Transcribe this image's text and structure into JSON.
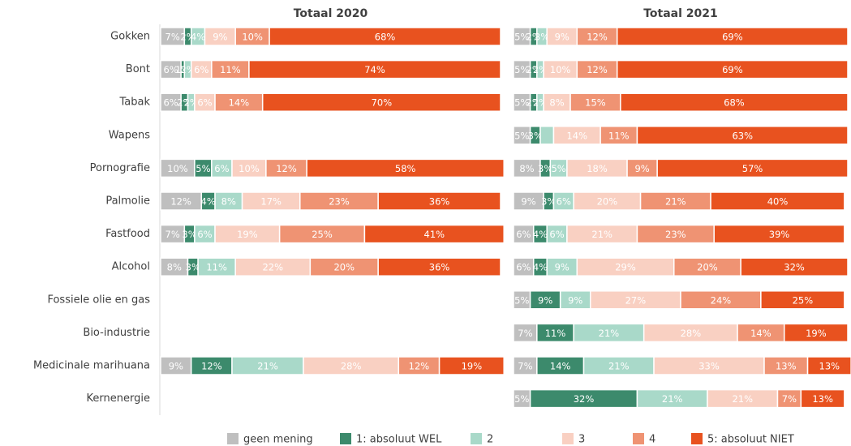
{
  "chart_data": {
    "type": "bar",
    "orientation": "horizontal",
    "stacked": true,
    "xlim": [
      0,
      100
    ],
    "legend": "bottom",
    "categories": [
      "Gokken",
      "Bont",
      "Tabak",
      "Wapens",
      "Pornografie",
      "Palmolie",
      "Fastfood",
      "Alcohol",
      "Fossiele olie en gas",
      "Bio-industrie",
      "Medicinale marihuana",
      "Kernenergie"
    ],
    "series": [
      {
        "name": "geen mening",
        "color": "#bfbfbf"
      },
      {
        "name": "1: absoluut WEL",
        "color": "#3c8a6c"
      },
      {
        "name": "2",
        "color": "#a9d9c9"
      },
      {
        "name": "3",
        "color": "#f9d0c2"
      },
      {
        "name": "4",
        "color": "#ef9373"
      },
      {
        "name": "5: absoluut NIET",
        "color": "#e8521f"
      }
    ],
    "panels": [
      {
        "title": "Totaal 2020",
        "values": [
          [
            7,
            6,
            6,
            null,
            10,
            12,
            7,
            8,
            null,
            null,
            9,
            null
          ],
          [
            2,
            1,
            2,
            null,
            5,
            4,
            3,
            3,
            null,
            null,
            12,
            null
          ],
          [
            4,
            2,
            2,
            null,
            6,
            8,
            6,
            11,
            null,
            null,
            21,
            null
          ],
          [
            9,
            6,
            6,
            null,
            10,
            17,
            19,
            22,
            null,
            null,
            28,
            null
          ],
          [
            10,
            11,
            14,
            null,
            12,
            23,
            25,
            20,
            null,
            null,
            12,
            null
          ],
          [
            68,
            74,
            70,
            null,
            58,
            36,
            41,
            36,
            null,
            null,
            19,
            null
          ]
        ],
        "value_labels": [
          [
            "7%",
            "6%",
            "6%",
            null,
            "10%",
            "12%",
            "7%",
            "8%",
            null,
            null,
            "9%",
            null
          ],
          [
            "2%",
            "1%",
            "2%",
            null,
            "5%",
            "4%",
            "3%",
            "3%",
            null,
            null,
            "12%",
            null
          ],
          [
            "4%",
            "2%",
            "2%",
            null,
            "6%",
            "8%",
            "6%",
            "11%",
            null,
            null,
            "21%",
            null
          ],
          [
            "9%",
            "6%",
            "6%",
            null,
            "10%",
            "17%",
            "19%",
            "22%",
            null,
            null,
            "28%",
            null
          ],
          [
            "10%",
            "11%",
            "14%",
            null,
            "12%",
            "23%",
            "25%",
            "20%",
            null,
            null,
            "12%",
            null
          ],
          [
            "68%",
            "74%",
            "70%",
            null,
            "58%",
            "36%",
            "41%",
            "36%",
            null,
            null,
            "19%",
            null
          ]
        ]
      },
      {
        "title": "Totaal 2021",
        "values": [
          [
            5,
            5,
            5,
            5,
            8,
            9,
            6,
            6,
            5,
            7,
            7,
            5
          ],
          [
            2,
            2,
            2,
            3,
            3,
            3,
            4,
            4,
            9,
            11,
            14,
            32
          ],
          [
            3,
            2,
            2,
            4,
            5,
            6,
            6,
            9,
            9,
            21,
            21,
            21
          ],
          [
            9,
            10,
            8,
            14,
            18,
            20,
            21,
            29,
            27,
            28,
            33,
            21
          ],
          [
            12,
            12,
            15,
            11,
            9,
            21,
            23,
            20,
            24,
            14,
            13,
            7
          ],
          [
            69,
            69,
            68,
            63,
            57,
            40,
            39,
            32,
            25,
            19,
            13,
            13
          ]
        ],
        "value_labels": [
          [
            "5%",
            "5%",
            "5%",
            "5%",
            "8%",
            "9%",
            "6%",
            "6%",
            "5%",
            "7%",
            "7%",
            "5%"
          ],
          [
            "2%",
            "2%",
            "2%",
            "3%",
            "3%",
            "3%",
            "4%",
            "4%",
            "9%",
            "11%",
            "14%",
            "32%"
          ],
          [
            "3%",
            "2%",
            "2%",
            null,
            "5%",
            "6%",
            "6%",
            "9%",
            "9%",
            "21%",
            "21%",
            "21%"
          ],
          [
            "9%",
            "10%",
            "8%",
            "14%",
            "18%",
            "20%",
            "21%",
            "29%",
            "27%",
            "28%",
            "33%",
            "21%"
          ],
          [
            "12%",
            "12%",
            "15%",
            "11%",
            "9%",
            "21%",
            "23%",
            "20%",
            "24%",
            "14%",
            "13%",
            "7%"
          ],
          [
            "69%",
            "69%",
            "68%",
            "63%",
            "57%",
            "40%",
            "39%",
            "32%",
            "25%",
            "19%",
            "13%",
            "13%"
          ]
        ]
      }
    ]
  }
}
